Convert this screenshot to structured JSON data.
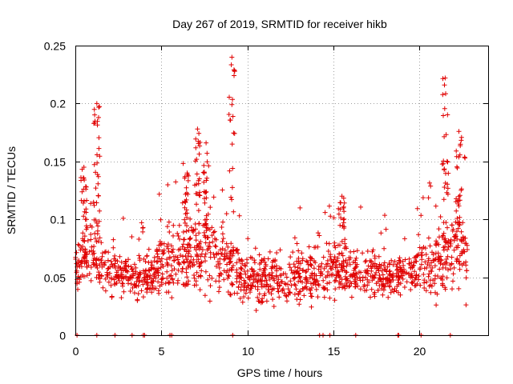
{
  "chart_data": {
    "type": "scatter",
    "title": "Day 267 of 2019, SRMTID for receiver hikb",
    "xlabel": "GPS time / hours",
    "ylabel": "SRMTID / TECUs",
    "xlim": [
      0,
      24
    ],
    "ylim": [
      0,
      0.25
    ],
    "x_ticks": [
      0,
      5,
      10,
      15,
      20
    ],
    "x_tick_labels": [
      "0",
      "5",
      "10",
      "15",
      "20"
    ],
    "y_ticks": [
      0,
      0.05,
      0.1,
      0.15,
      0.2,
      0.25
    ],
    "y_tick_labels": [
      "0",
      "0.05",
      "0.1",
      "0.15",
      "0.2",
      "0.25"
    ],
    "grid": true,
    "marker": "+",
    "series_color": "#e00000",
    "profile": {
      "x": [
        0.0,
        0.5,
        1.0,
        1.5,
        2.0,
        3.0,
        4.0,
        5.0,
        6.0,
        7.0,
        8.0,
        9.0,
        10.0,
        11.0,
        12.0,
        13.0,
        14.0,
        15.0,
        16.0,
        17.0,
        18.0,
        19.0,
        20.0,
        21.0,
        22.0,
        22.8
      ],
      "y_median": [
        0.055,
        0.065,
        0.075,
        0.06,
        0.055,
        0.05,
        0.052,
        0.06,
        0.062,
        0.07,
        0.075,
        0.06,
        0.05,
        0.048,
        0.047,
        0.05,
        0.05,
        0.058,
        0.055,
        0.052,
        0.05,
        0.052,
        0.058,
        0.06,
        0.075,
        0.065
      ],
      "y_spread": [
        0.015,
        0.025,
        0.03,
        0.02,
        0.018,
        0.016,
        0.018,
        0.022,
        0.025,
        0.03,
        0.03,
        0.022,
        0.02,
        0.02,
        0.02,
        0.02,
        0.02,
        0.02,
        0.02,
        0.018,
        0.018,
        0.018,
        0.02,
        0.025,
        0.035,
        0.03
      ]
    },
    "spikes": [
      {
        "x": 0.5,
        "y_max": 0.145
      },
      {
        "x": 1.25,
        "y_max": 0.2
      },
      {
        "x": 6.5,
        "y_max": 0.14
      },
      {
        "x": 7.1,
        "y_max": 0.178
      },
      {
        "x": 7.6,
        "y_max": 0.166
      },
      {
        "x": 9.1,
        "y_max": 0.24
      },
      {
        "x": 15.5,
        "y_max": 0.12
      },
      {
        "x": 21.5,
        "y_max": 0.222
      },
      {
        "x": 22.3,
        "y_max": 0.176
      }
    ],
    "zero_points_x": [
      0.1,
      1.25,
      2.3,
      3.3,
      3.95,
      4.02,
      5.5,
      5.6,
      9.15,
      14.2,
      14.4,
      14.8,
      16.3,
      18.75,
      18.8,
      20.1,
      21.8
    ]
  }
}
